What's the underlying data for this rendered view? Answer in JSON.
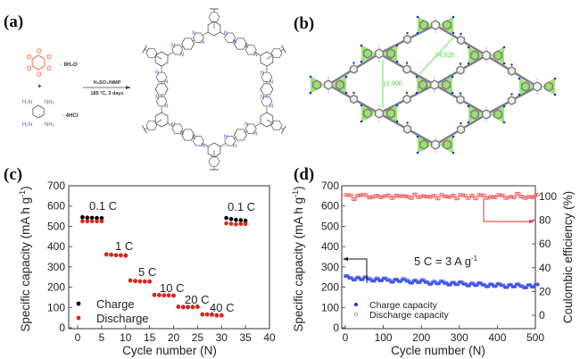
{
  "panels": {
    "a": {
      "label": "(a)",
      "reactant1_hydrate": "· 8H₂O",
      "plus": "+",
      "reactant2_salt": "· 4HCl",
      "amine_labels": [
        "H₂N",
        "NH₂",
        "H₂N",
        "NH₂"
      ],
      "oxygen_label": "O",
      "nitrogen_label": "N",
      "conditions_top": "H₂SO₄/NMP",
      "conditions_bottom": "185 °C, 3 days",
      "colors": {
        "oxygen": "#e8502a",
        "nitrogen": "#4a63b8",
        "bond": "#555555"
      }
    },
    "b": {
      "label": "(b)",
      "distance_1": "11.900",
      "distance_2": "14.928",
      "colors": {
        "ring_highlight": "#8ee05a",
        "carbon": "#808080",
        "nitrogen": "#1030e0",
        "measure": "#3ddc3d"
      }
    },
    "c": {
      "label": "(c)"
    },
    "d": {
      "label": "(d)"
    }
  },
  "chart_data": [
    {
      "type": "scatter",
      "panel": "c",
      "xlabel": "Cycle number (N)",
      "ylabel": "Specific capacity (mA h g",
      "ylabel_sup": "-1",
      "ylabel_end": ")",
      "xlim": [
        0,
        40
      ],
      "ylim": [
        0,
        700
      ],
      "xticks": [
        0,
        5,
        10,
        15,
        20,
        25,
        30,
        35,
        40
      ],
      "yticks": [
        0,
        100,
        200,
        300,
        400,
        500,
        600,
        700
      ],
      "legend_position": "bottom-left",
      "annotations": [
        "0.1 C",
        "1 C",
        "5 C",
        "10 C",
        "20 C",
        "40 C",
        "0.1 C"
      ],
      "series": [
        {
          "name": "Charge",
          "color": "#000000",
          "x": [
            1,
            2,
            3,
            4,
            5,
            6,
            7,
            8,
            9,
            10,
            11,
            12,
            13,
            14,
            15,
            16,
            17,
            18,
            19,
            20,
            21,
            22,
            23,
            24,
            25,
            26,
            27,
            28,
            29,
            30,
            31,
            32,
            33,
            34,
            35
          ],
          "y": [
            545,
            543,
            542,
            541,
            540,
            362,
            360,
            358,
            357,
            356,
            233,
            231,
            229,
            228,
            228,
            162,
            161,
            160,
            160,
            159,
            104,
            102,
            102,
            102,
            104,
            66,
            66,
            65,
            61,
            61,
            541,
            536,
            532,
            530,
            528
          ]
        },
        {
          "name": "Discharge",
          "color": "#e8201a",
          "x": [
            1,
            2,
            3,
            4,
            5,
            6,
            7,
            8,
            9,
            10,
            11,
            12,
            13,
            14,
            15,
            16,
            17,
            18,
            19,
            20,
            21,
            22,
            23,
            24,
            25,
            26,
            27,
            28,
            29,
            30,
            31,
            32,
            33,
            34,
            35
          ],
          "y": [
            525,
            525,
            525,
            525,
            525,
            361,
            360,
            358,
            357,
            355,
            232,
            230,
            229,
            228,
            227,
            161,
            161,
            160,
            160,
            158,
            103,
            101,
            101,
            101,
            102,
            65,
            65,
            64,
            60,
            60,
            515,
            513,
            510,
            512,
            512
          ]
        }
      ]
    },
    {
      "type": "scatter",
      "panel": "d",
      "xlabel": "Cycle number (N)",
      "ylabel": "Specific capacity (mA h g",
      "ylabel_sup": "-1",
      "ylabel_end": ")",
      "y2label": "Coulombic efficiency (%)",
      "xlim": [
        0,
        500
      ],
      "ylim": [
        0,
        700
      ],
      "y2lim": [
        -10,
        110
      ],
      "xticks": [
        0,
        100,
        200,
        300,
        400,
        500
      ],
      "yticks": [
        0,
        100,
        200,
        300,
        400,
        500,
        600,
        700
      ],
      "y2ticks": [
        0,
        20,
        40,
        60,
        80,
        100
      ],
      "legend_position": "bottom-left",
      "annotation": "5 C = 3 A g",
      "annotation_sup": "-1",
      "x": [
        0,
        10,
        20,
        30,
        40,
        50,
        60,
        70,
        80,
        90,
        100,
        110,
        120,
        130,
        140,
        150,
        160,
        170,
        180,
        190,
        200,
        210,
        220,
        230,
        240,
        250,
        260,
        270,
        280,
        290,
        300,
        310,
        320,
        330,
        340,
        350,
        360,
        370,
        380,
        390,
        400,
        410,
        420,
        430,
        440,
        450,
        460,
        470,
        480,
        490,
        500
      ],
      "series": [
        {
          "name": "Charge capacity",
          "color": "#1a2ee8",
          "marker": "filled-circle",
          "axis": "left",
          "y": [
            245,
            244,
            243,
            242,
            241,
            240,
            238,
            237,
            236,
            235,
            234,
            233,
            232,
            232,
            231,
            230,
            229,
            228,
            227,
            226,
            225,
            224,
            222,
            221,
            220,
            219,
            219,
            218,
            217,
            216,
            216,
            215,
            214,
            213,
            212,
            211,
            210,
            209,
            209,
            208,
            207,
            207,
            206,
            206,
            205,
            205,
            204,
            204,
            205,
            204,
            204
          ]
        },
        {
          "name": "Discharge capacity",
          "color": "#5a6ef0",
          "marker": "open-circle",
          "axis": "left",
          "y": [
            248,
            246,
            247,
            244,
            243,
            242,
            241,
            239,
            240,
            237,
            236,
            236,
            235,
            234,
            234,
            233,
            232,
            230,
            229,
            229,
            228,
            226,
            225,
            224,
            223,
            222,
            221,
            221,
            219,
            219,
            218,
            217,
            217,
            215,
            214,
            213,
            212,
            212,
            211,
            210,
            209,
            209,
            208,
            208,
            207,
            207,
            206,
            206,
            207,
            206,
            206
          ]
        },
        {
          "name": "Coulombic efficiency",
          "color": "#f05050",
          "marker": "open-circle",
          "axis": "right",
          "y": [
            100,
            101,
            99,
            100,
            102,
            100,
            99,
            101,
            100,
            100,
            99,
            101,
            100,
            100,
            101,
            99,
            100,
            100,
            101,
            100,
            99,
            100,
            101,
            100,
            99,
            100,
            100,
            101,
            100,
            99,
            100,
            101,
            100,
            100,
            99,
            100,
            101,
            100,
            99,
            100,
            100,
            101,
            100,
            99,
            100,
            101,
            100,
            100,
            99,
            100,
            100
          ]
        }
      ]
    }
  ]
}
